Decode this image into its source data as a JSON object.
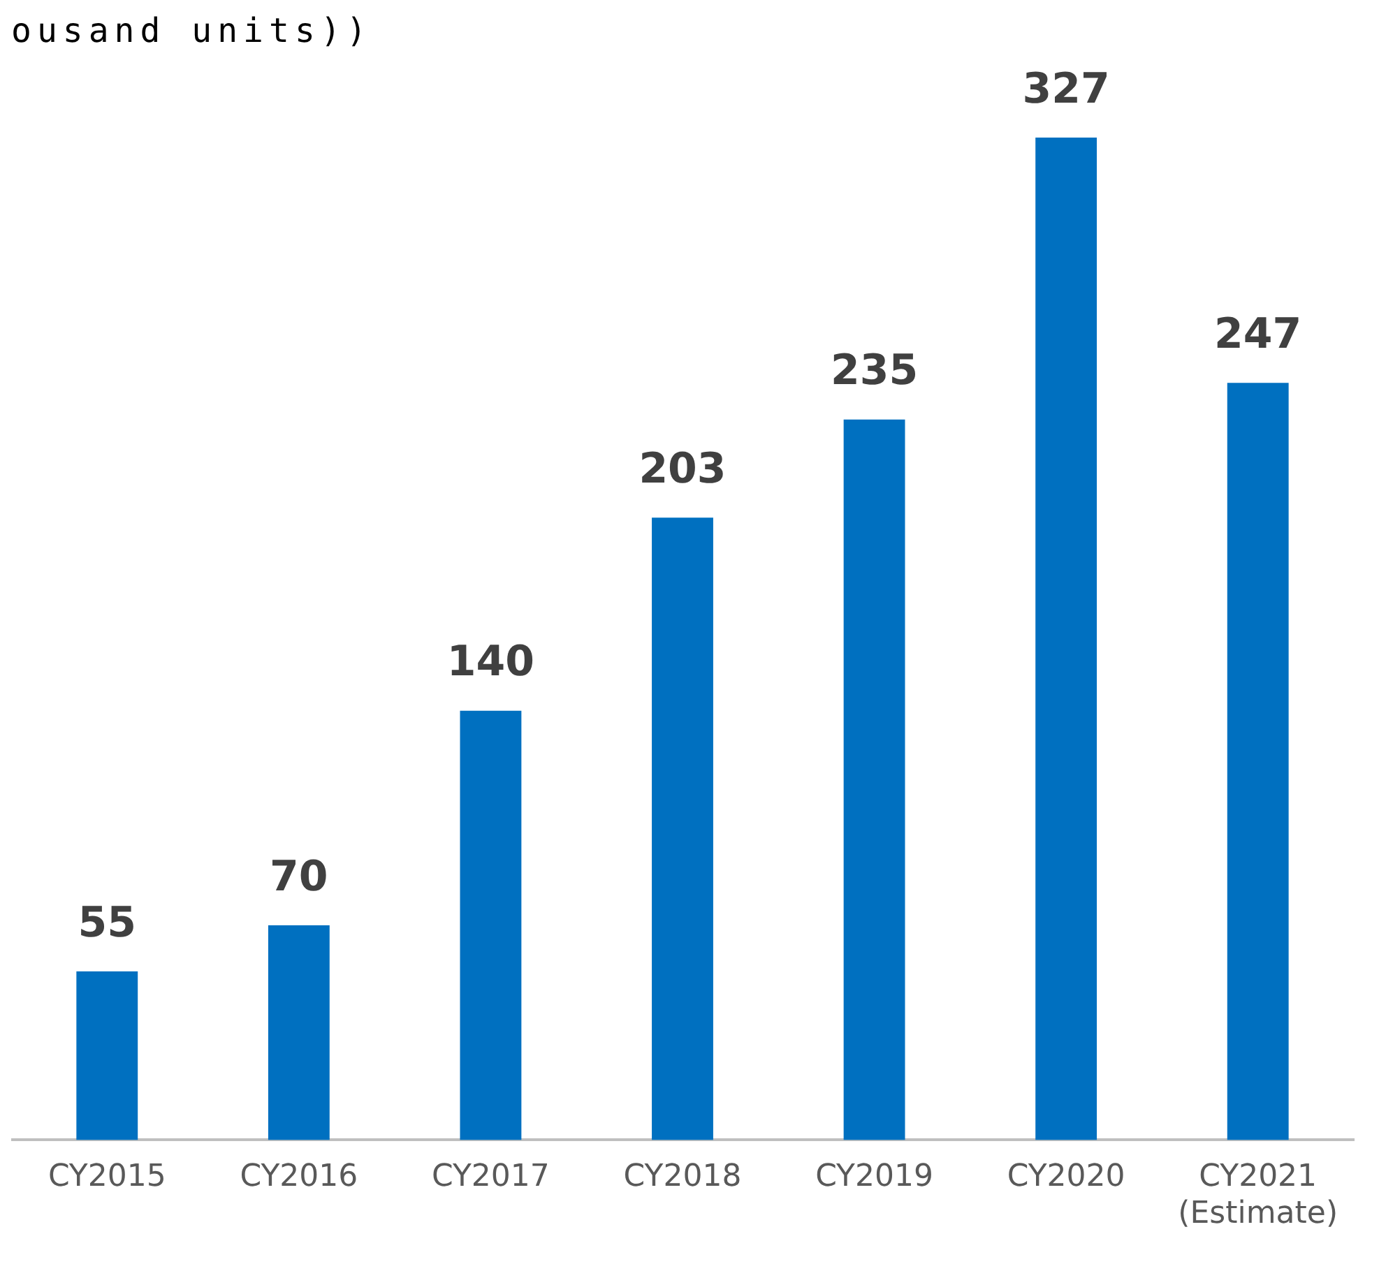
{
  "chart_data": {
    "type": "bar",
    "title": "ousand units))",
    "categories": [
      "CY2015",
      "CY2016",
      "CY2017",
      "CY2018",
      "CY2019",
      "CY2020",
      "CY2021\n(Estimate)"
    ],
    "values": [
      55,
      70,
      140,
      203,
      235,
      327,
      247
    ],
    "color": "#0070c0",
    "tick_labels": "x",
    "data_labels": true,
    "grid": false,
    "legend": false
  }
}
